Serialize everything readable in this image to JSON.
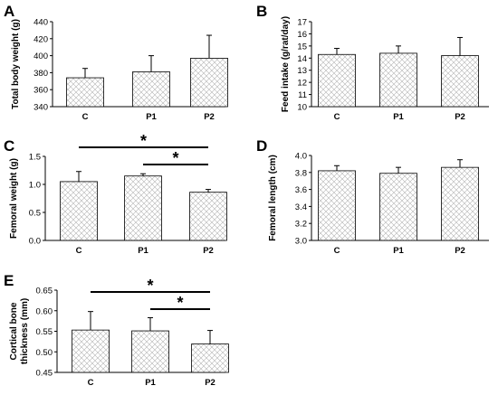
{
  "chart_data": [
    {
      "type": "bar",
      "panel": "A",
      "categories": [
        "C",
        "P1",
        "P2"
      ],
      "values": [
        374,
        381,
        397
      ],
      "errors": [
        11,
        19,
        27
      ],
      "ylabel": "Total body weight (g)",
      "ylim": [
        340,
        440
      ],
      "yticks": [
        "340",
        "360",
        "380",
        "400",
        "420",
        "440"
      ],
      "significance": []
    },
    {
      "type": "bar",
      "panel": "B",
      "categories": [
        "C",
        "P1",
        "P2"
      ],
      "values": [
        14.3,
        14.4,
        14.2
      ],
      "errors": [
        0.5,
        0.6,
        1.5
      ],
      "ylabel": "Feed intake (g/rat/day)",
      "ylim": [
        10,
        17
      ],
      "yticks": [
        "10",
        "11",
        "12",
        "13",
        "14",
        "15",
        "16",
        "17"
      ],
      "significance": []
    },
    {
      "type": "bar",
      "panel": "C",
      "categories": [
        "C",
        "P1",
        "P2"
      ],
      "values": [
        1.05,
        1.15,
        0.86
      ],
      "errors": [
        0.18,
        0.04,
        0.05
      ],
      "ylabel": "Femoral weight (g)",
      "ylim": [
        0.0,
        1.5
      ],
      "yticks": [
        "0.0",
        "0.5",
        "1.0",
        "1.5"
      ],
      "significance": [
        {
          "from": "C",
          "to": "P2",
          "label": "*"
        },
        {
          "from": "P1",
          "to": "P2",
          "label": "*"
        }
      ]
    },
    {
      "type": "bar",
      "panel": "D",
      "categories": [
        "C",
        "P1",
        "P2"
      ],
      "values": [
        3.82,
        3.79,
        3.86
      ],
      "errors": [
        0.06,
        0.07,
        0.09
      ],
      "ylabel": "Femoral length (cm)",
      "ylim": [
        3.0,
        4.0
      ],
      "yticks": [
        "3.0",
        "3.2",
        "3.4",
        "3.6",
        "3.8",
        "4.0"
      ],
      "significance": []
    },
    {
      "type": "bar",
      "panel": "E",
      "categories": [
        "C",
        "P1",
        "P2"
      ],
      "values": [
        0.553,
        0.551,
        0.519
      ],
      "errors": [
        0.045,
        0.032,
        0.033
      ],
      "ylabel": "Cortical bone thickness (mm)",
      "ylabel_lines": [
        "Cortical bone",
        "thickness (mm)"
      ],
      "ylim": [
        0.45,
        0.65
      ],
      "yticks": [
        "0.45",
        "0.50",
        "0.55",
        "0.60",
        "0.65"
      ],
      "significance": [
        {
          "from": "C",
          "to": "P2",
          "label": "*"
        },
        {
          "from": "P1",
          "to": "P2",
          "label": "*"
        }
      ]
    }
  ]
}
